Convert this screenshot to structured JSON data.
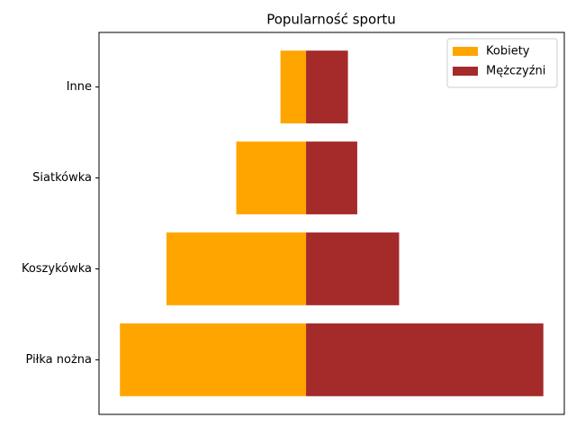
{
  "chart_data": {
    "type": "butterfly-bar",
    "title": "Popularność sportu",
    "categories": [
      "Piłka nożna",
      "Koszykówka",
      "Siatkówka",
      "Inne"
    ],
    "series": [
      {
        "name": "Kobiety",
        "color": "#ffa500",
        "values": [
          -40,
          -30,
          -15,
          -5.5
        ]
      },
      {
        "name": "Mężczyźni",
        "color": "#a52a2a",
        "values": [
          51,
          20,
          11,
          9
        ]
      }
    ],
    "xlim": [
      -44.5,
      55.5
    ],
    "legend": "upper right"
  }
}
